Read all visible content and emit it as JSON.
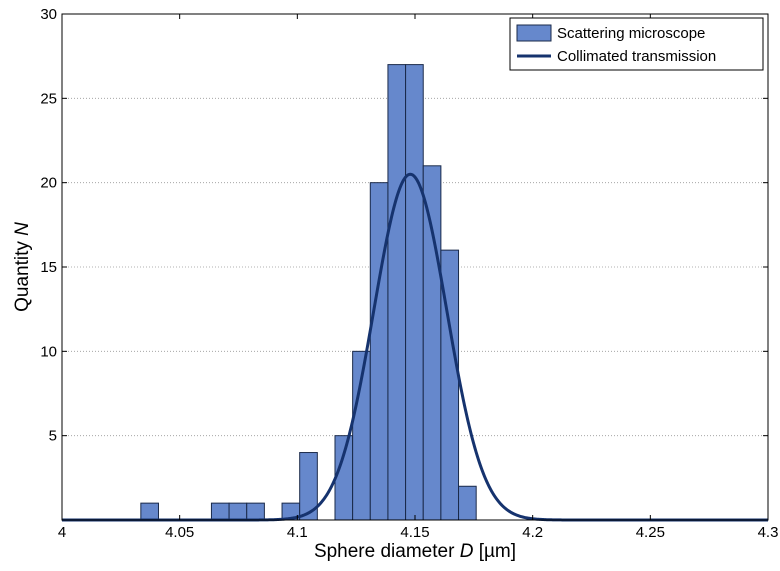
{
  "chart_data": {
    "type": "bar",
    "xlabel_main": "Sphere diameter ",
    "xlabel_var": "D",
    "xlabel_unit": " [µm]",
    "ylabel_main": "Quantity ",
    "ylabel_var": "N",
    "xlim": [
      4.0,
      4.3
    ],
    "ylim": [
      0,
      30
    ],
    "xticks": [
      4,
      4.05,
      4.1,
      4.15,
      4.2,
      4.25,
      4.3
    ],
    "xtick_labels": [
      "4",
      "4.05",
      "4.1",
      "4.15",
      "4.2",
      "4.25",
      "4.3"
    ],
    "yticks": [
      5,
      10,
      15,
      20,
      25,
      30
    ],
    "ytick_labels": [
      "5",
      "10",
      "15",
      "20",
      "25",
      "30"
    ],
    "grid": "horizontal dotted",
    "legend_position": "top-right",
    "colors": {
      "bar_fill": "#6688cc",
      "bar_edge": "#1a2a4a",
      "curve": "#16336e"
    },
    "series": [
      {
        "name": "Scattering microscope",
        "kind": "histogram",
        "bin_width": 0.0075,
        "bins": [
          {
            "start": 4.0335,
            "count": 1
          },
          {
            "start": 4.0635,
            "count": 1
          },
          {
            "start": 4.071,
            "count": 1
          },
          {
            "start": 4.0785,
            "count": 1
          },
          {
            "start": 4.0935,
            "count": 1
          },
          {
            "start": 4.101,
            "count": 4
          },
          {
            "start": 4.116,
            "count": 5
          },
          {
            "start": 4.1235,
            "count": 10
          },
          {
            "start": 4.131,
            "count": 20
          },
          {
            "start": 4.1385,
            "count": 27
          },
          {
            "start": 4.146,
            "count": 27
          },
          {
            "start": 4.1535,
            "count": 21
          },
          {
            "start": 4.161,
            "count": 16
          },
          {
            "start": 4.1685,
            "count": 2
          }
        ]
      },
      {
        "name": "Collimated transmission",
        "kind": "gaussian",
        "mean": 4.148,
        "sigma": 0.0155,
        "peak": 20.5
      }
    ]
  }
}
